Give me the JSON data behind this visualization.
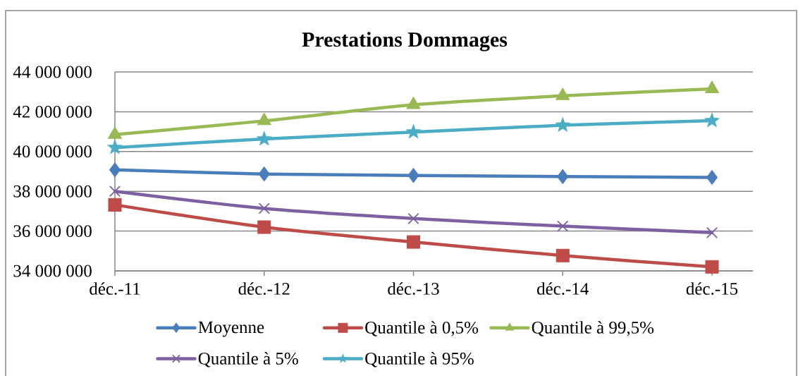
{
  "chart_data": {
    "type": "line",
    "title": "Prestations Dommages",
    "categories": [
      "déc.-11",
      "déc.-12",
      "déc.-13",
      "déc.-14",
      "déc.-15"
    ],
    "series": [
      {
        "name": "Moyenne",
        "color": "#4a7ebb",
        "marker": "diamond",
        "values": [
          39080000,
          38870000,
          38800000,
          38740000,
          38700000
        ]
      },
      {
        "name": "Quantile à 0,5%",
        "color": "#be4b48",
        "marker": "square",
        "values": [
          37320000,
          36200000,
          35450000,
          34770000,
          34200000
        ]
      },
      {
        "name": "Quantile à 99,5%",
        "color": "#98b954",
        "marker": "triangle",
        "values": [
          40850000,
          41540000,
          42350000,
          42800000,
          43150000
        ]
      },
      {
        "name": "Quantile à 5%",
        "color": "#7d60a0",
        "marker": "cross",
        "values": [
          38000000,
          37140000,
          36630000,
          36250000,
          35920000
        ]
      },
      {
        "name": "Quantile à 95%",
        "color": "#4bacc6",
        "marker": "star",
        "values": [
          40200000,
          40630000,
          40980000,
          41320000,
          41550000
        ]
      }
    ],
    "ylim": [
      34000000,
      44000000
    ],
    "yticks": [
      {
        "value": 34000000,
        "label": "34 000 000"
      },
      {
        "value": 36000000,
        "label": "36 000 000"
      },
      {
        "value": 38000000,
        "label": "38 000 000"
      },
      {
        "value": 40000000,
        "label": "40 000 000"
      },
      {
        "value": 42000000,
        "label": "42 000 000"
      },
      {
        "value": 44000000,
        "label": "44 000 000"
      }
    ],
    "grid": "y",
    "legend": "bottom",
    "line_style": "solid"
  }
}
